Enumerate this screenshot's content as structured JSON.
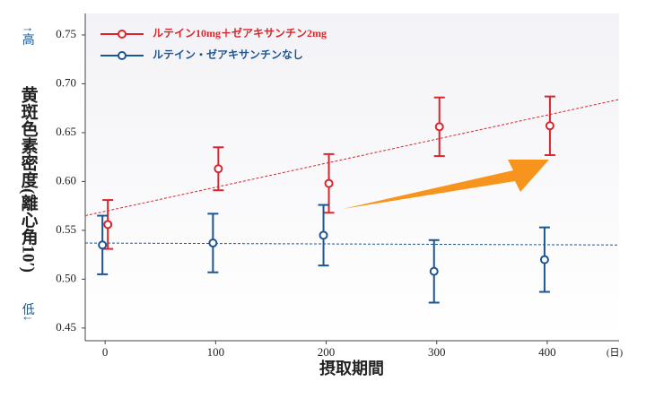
{
  "chart_data": {
    "type": "errorbar",
    "x_label": "摂取期間",
    "x_unit": "(日)",
    "y_label": "黄斑色素密度(離心角10′)",
    "y_high": "↑高",
    "y_low": "低↓",
    "x": [
      0,
      100,
      200,
      300,
      400
    ],
    "series": [
      {
        "name": "ルテイン10mg＋ゼアキサンチン2mg",
        "color": "#d9262c",
        "values": [
          0.556,
          0.613,
          0.598,
          0.656,
          0.657
        ],
        "errors": [
          0.025,
          0.022,
          0.03,
          0.03,
          0.03
        ],
        "trend": {
          "x": [
            -18,
            465
          ],
          "y": [
            0.565,
            0.684
          ]
        }
      },
      {
        "name": "ルテイン・ゼアキサンチンなし",
        "color": "#1d5592",
        "values": [
          0.535,
          0.537,
          0.545,
          0.508,
          0.52
        ],
        "errors": [
          0.03,
          0.03,
          0.031,
          0.032,
          0.033
        ],
        "trend": {
          "x": [
            -18,
            465
          ],
          "y": [
            0.537,
            0.535
          ]
        }
      }
    ],
    "xlim": [
      -18,
      465
    ],
    "ylim": [
      0.437,
      0.772
    ],
    "xticks": [
      0,
      100,
      200,
      300,
      400
    ],
    "yticks": [
      0.45,
      {
        "value": 0.5,
        "label": "0.50"
      },
      0.55,
      {
        "value": 0.6,
        "label": "0.60"
      },
      0.65,
      {
        "value": 0.7,
        "label": "0.70"
      },
      0.75
    ]
  }
}
